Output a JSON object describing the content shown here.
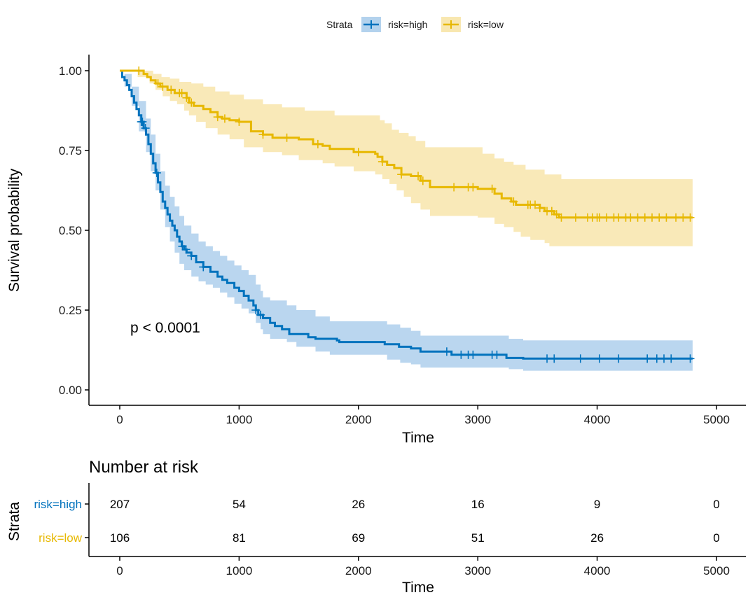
{
  "chart_data": {
    "type": "line",
    "subtype": "kaplan-meier",
    "legend": {
      "title": "Strata",
      "position": "top",
      "labels": [
        "risk=high",
        "risk=low"
      ]
    },
    "colors": {
      "high": "#0072BD",
      "high_fill": "#b3d2ed",
      "low": "#E7B800",
      "low_fill": "#f8e7b0"
    },
    "xlabel": "Time",
    "ylabel": "Survival probability",
    "xlim": [
      0,
      5000
    ],
    "ylim": [
      0,
      1
    ],
    "x_ticks": [
      "0",
      "1000",
      "2000",
      "3000",
      "4000",
      "5000"
    ],
    "y_ticks": [
      "0.00",
      "0.25",
      "0.50",
      "0.75",
      "1.00"
    ],
    "pvalue_text": "p < 0.0001",
    "series": [
      {
        "name": "risk=high",
        "color": "#0072BD",
        "steps": [
          [
            0,
            1.0
          ],
          [
            20,
            0.98
          ],
          [
            40,
            0.97
          ],
          [
            60,
            0.955
          ],
          [
            80,
            0.94
          ],
          [
            100,
            0.92
          ],
          [
            120,
            0.9
          ],
          [
            140,
            0.88
          ],
          [
            160,
            0.86
          ],
          [
            180,
            0.84
          ],
          [
            200,
            0.82
          ],
          [
            220,
            0.8
          ],
          [
            240,
            0.77
          ],
          [
            260,
            0.74
          ],
          [
            280,
            0.71
          ],
          [
            300,
            0.68
          ],
          [
            320,
            0.65
          ],
          [
            340,
            0.62
          ],
          [
            360,
            0.59
          ],
          [
            380,
            0.57
          ],
          [
            400,
            0.55
          ],
          [
            420,
            0.53
          ],
          [
            440,
            0.515
          ],
          [
            460,
            0.5
          ],
          [
            480,
            0.48
          ],
          [
            500,
            0.465
          ],
          [
            520,
            0.45
          ],
          [
            540,
            0.44
          ],
          [
            560,
            0.43
          ],
          [
            600,
            0.42
          ],
          [
            640,
            0.4
          ],
          [
            700,
            0.385
          ],
          [
            760,
            0.37
          ],
          [
            820,
            0.355
          ],
          [
            860,
            0.345
          ],
          [
            900,
            0.335
          ],
          [
            960,
            0.32
          ],
          [
            1000,
            0.31
          ],
          [
            1040,
            0.295
          ],
          [
            1080,
            0.28
          ],
          [
            1120,
            0.265
          ],
          [
            1140,
            0.25
          ],
          [
            1160,
            0.235
          ],
          [
            1200,
            0.225
          ],
          [
            1260,
            0.21
          ],
          [
            1300,
            0.2
          ],
          [
            1360,
            0.19
          ],
          [
            1420,
            0.175
          ],
          [
            1580,
            0.165
          ],
          [
            1640,
            0.16
          ],
          [
            1820,
            0.155
          ],
          [
            1840,
            0.15
          ],
          [
            2220,
            0.143
          ],
          [
            2340,
            0.135
          ],
          [
            2440,
            0.13
          ],
          [
            2520,
            0.12
          ],
          [
            2780,
            0.11
          ],
          [
            3040,
            0.11
          ],
          [
            3240,
            0.1
          ],
          [
            3380,
            0.098
          ],
          [
            4800,
            0.098
          ]
        ],
        "upper": [
          [
            0,
            1.0
          ],
          [
            40,
            0.99
          ],
          [
            100,
            0.95
          ],
          [
            160,
            0.905
          ],
          [
            220,
            0.85
          ],
          [
            260,
            0.8
          ],
          [
            300,
            0.74
          ],
          [
            340,
            0.685
          ],
          [
            380,
            0.64
          ],
          [
            420,
            0.605
          ],
          [
            460,
            0.575
          ],
          [
            500,
            0.545
          ],
          [
            540,
            0.515
          ],
          [
            600,
            0.49
          ],
          [
            660,
            0.465
          ],
          [
            720,
            0.45
          ],
          [
            780,
            0.435
          ],
          [
            840,
            0.42
          ],
          [
            900,
            0.405
          ],
          [
            960,
            0.39
          ],
          [
            1020,
            0.375
          ],
          [
            1080,
            0.36
          ],
          [
            1140,
            0.33
          ],
          [
            1180,
            0.31
          ],
          [
            1200,
            0.29
          ],
          [
            1260,
            0.28
          ],
          [
            1400,
            0.265
          ],
          [
            1480,
            0.25
          ],
          [
            1640,
            0.23
          ],
          [
            1760,
            0.215
          ],
          [
            2240,
            0.205
          ],
          [
            2350,
            0.195
          ],
          [
            2440,
            0.185
          ],
          [
            2520,
            0.17
          ],
          [
            3260,
            0.16
          ],
          [
            3380,
            0.155
          ],
          [
            4800,
            0.155
          ]
        ],
        "lower": [
          [
            0,
            1.0
          ],
          [
            40,
            0.95
          ],
          [
            100,
            0.89
          ],
          [
            160,
            0.81
          ],
          [
            220,
            0.745
          ],
          [
            260,
            0.685
          ],
          [
            300,
            0.625
          ],
          [
            340,
            0.565
          ],
          [
            380,
            0.51
          ],
          [
            420,
            0.465
          ],
          [
            460,
            0.43
          ],
          [
            500,
            0.395
          ],
          [
            540,
            0.375
          ],
          [
            600,
            0.355
          ],
          [
            660,
            0.34
          ],
          [
            720,
            0.33
          ],
          [
            780,
            0.32
          ],
          [
            840,
            0.305
          ],
          [
            900,
            0.29
          ],
          [
            960,
            0.27
          ],
          [
            1020,
            0.255
          ],
          [
            1080,
            0.24
          ],
          [
            1140,
            0.21
          ],
          [
            1180,
            0.19
          ],
          [
            1200,
            0.175
          ],
          [
            1260,
            0.16
          ],
          [
            1400,
            0.15
          ],
          [
            1480,
            0.135
          ],
          [
            1640,
            0.12
          ],
          [
            1760,
            0.11
          ],
          [
            2240,
            0.095
          ],
          [
            2350,
            0.085
          ],
          [
            2440,
            0.08
          ],
          [
            2520,
            0.07
          ],
          [
            3260,
            0.065
          ],
          [
            3380,
            0.06
          ],
          [
            4800,
            0.06
          ]
        ],
        "censor_x": [
          180,
          190,
          215,
          310,
          525,
          555,
          600,
          700,
          1140,
          1180,
          2740,
          2860,
          2920,
          2960,
          3120,
          3160,
          3580,
          3640,
          3860,
          4020,
          4180,
          4420,
          4500,
          4560,
          4620,
          4780
        ]
      },
      {
        "name": "risk=low",
        "color": "#E7B800",
        "steps": [
          [
            0,
            1.0
          ],
          [
            200,
            0.99
          ],
          [
            230,
            0.98
          ],
          [
            260,
            0.97
          ],
          [
            300,
            0.96
          ],
          [
            340,
            0.95
          ],
          [
            400,
            0.94
          ],
          [
            460,
            0.93
          ],
          [
            560,
            0.915
          ],
          [
            580,
            0.9
          ],
          [
            620,
            0.89
          ],
          [
            700,
            0.88
          ],
          [
            760,
            0.87
          ],
          [
            820,
            0.855
          ],
          [
            860,
            0.85
          ],
          [
            920,
            0.845
          ],
          [
            1000,
            0.84
          ],
          [
            1100,
            0.81
          ],
          [
            1200,
            0.8
          ],
          [
            1280,
            0.79
          ],
          [
            1500,
            0.785
          ],
          [
            1620,
            0.77
          ],
          [
            1700,
            0.765
          ],
          [
            1760,
            0.755
          ],
          [
            1960,
            0.745
          ],
          [
            2140,
            0.74
          ],
          [
            2160,
            0.73
          ],
          [
            2200,
            0.715
          ],
          [
            2240,
            0.705
          ],
          [
            2300,
            0.695
          ],
          [
            2360,
            0.675
          ],
          [
            2440,
            0.67
          ],
          [
            2520,
            0.655
          ],
          [
            2600,
            0.635
          ],
          [
            3000,
            0.63
          ],
          [
            3140,
            0.615
          ],
          [
            3200,
            0.6
          ],
          [
            3280,
            0.59
          ],
          [
            3320,
            0.58
          ],
          [
            3520,
            0.57
          ],
          [
            3560,
            0.56
          ],
          [
            3640,
            0.55
          ],
          [
            3680,
            0.54
          ],
          [
            4800,
            0.54
          ]
        ],
        "upper": [
          [
            0,
            1.0
          ],
          [
            150,
            1.0
          ],
          [
            280,
            0.99
          ],
          [
            350,
            0.98
          ],
          [
            420,
            0.975
          ],
          [
            500,
            0.965
          ],
          [
            600,
            0.96
          ],
          [
            700,
            0.95
          ],
          [
            800,
            0.935
          ],
          [
            920,
            0.925
          ],
          [
            1040,
            0.91
          ],
          [
            1200,
            0.895
          ],
          [
            1360,
            0.885
          ],
          [
            1550,
            0.875
          ],
          [
            1800,
            0.86
          ],
          [
            2180,
            0.845
          ],
          [
            2220,
            0.835
          ],
          [
            2280,
            0.815
          ],
          [
            2340,
            0.805
          ],
          [
            2420,
            0.795
          ],
          [
            2480,
            0.78
          ],
          [
            2560,
            0.76
          ],
          [
            3040,
            0.74
          ],
          [
            3140,
            0.725
          ],
          [
            3220,
            0.715
          ],
          [
            3300,
            0.705
          ],
          [
            3400,
            0.69
          ],
          [
            3560,
            0.675
          ],
          [
            3700,
            0.66
          ],
          [
            4800,
            0.66
          ]
        ],
        "lower": [
          [
            0,
            1.0
          ],
          [
            150,
            0.98
          ],
          [
            250,
            0.96
          ],
          [
            300,
            0.94
          ],
          [
            360,
            0.92
          ],
          [
            420,
            0.905
          ],
          [
            480,
            0.895
          ],
          [
            540,
            0.875
          ],
          [
            580,
            0.86
          ],
          [
            640,
            0.84
          ],
          [
            720,
            0.82
          ],
          [
            820,
            0.8
          ],
          [
            920,
            0.785
          ],
          [
            1040,
            0.76
          ],
          [
            1200,
            0.745
          ],
          [
            1360,
            0.735
          ],
          [
            1500,
            0.72
          ],
          [
            1700,
            0.71
          ],
          [
            1800,
            0.7
          ],
          [
            1960,
            0.685
          ],
          [
            2140,
            0.675
          ],
          [
            2200,
            0.66
          ],
          [
            2260,
            0.645
          ],
          [
            2320,
            0.625
          ],
          [
            2380,
            0.605
          ],
          [
            2440,
            0.585
          ],
          [
            2520,
            0.565
          ],
          [
            2600,
            0.545
          ],
          [
            3000,
            0.54
          ],
          [
            3140,
            0.52
          ],
          [
            3220,
            0.51
          ],
          [
            3300,
            0.495
          ],
          [
            3360,
            0.48
          ],
          [
            3440,
            0.47
          ],
          [
            3560,
            0.46
          ],
          [
            3600,
            0.45
          ],
          [
            4800,
            0.45
          ]
        ],
        "censor_x": [
          160,
          320,
          360,
          430,
          500,
          520,
          560,
          600,
          820,
          880,
          1000,
          1200,
          1400,
          1660,
          2000,
          2200,
          2360,
          2500,
          2540,
          2800,
          2920,
          2960,
          3120,
          3300,
          3420,
          3440,
          3480,
          3520,
          3580,
          3620,
          3660,
          3700,
          3820,
          3920,
          3960,
          4000,
          4020,
          4080,
          4140,
          4180,
          4240,
          4280,
          4340,
          4400,
          4460,
          4520,
          4580,
          4660,
          4720,
          4780
        ]
      }
    ],
    "risk_table": {
      "title": "Number at risk",
      "ylabel": "Strata",
      "xlabel": "Time",
      "times": [
        0,
        1000,
        2000,
        3000,
        4000,
        5000
      ],
      "x_ticks": [
        "0",
        "1000",
        "2000",
        "3000",
        "4000",
        "5000"
      ],
      "rows": [
        {
          "label": "risk=high",
          "color": "#0072BD",
          "values": [
            "207",
            "54",
            "26",
            "16",
            "9",
            "0"
          ]
        },
        {
          "label": "risk=low",
          "color": "#E7B800",
          "values": [
            "106",
            "81",
            "69",
            "51",
            "26",
            "0"
          ]
        }
      ]
    }
  }
}
